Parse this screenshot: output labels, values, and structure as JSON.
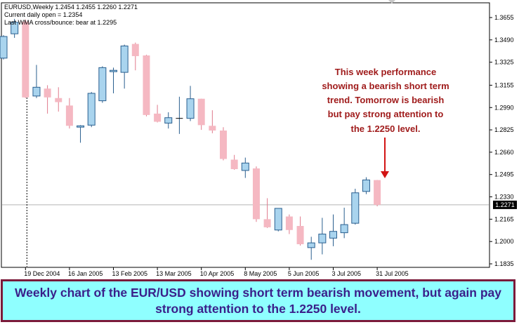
{
  "header": {
    "symbol_line": "EURUSD,Weekly  1.2454 1.2455 1.2260 1.2271",
    "daily_open_line": "Current daily open = 1.2354",
    "wma_line": "Last WMA cross/bounce: bear at 1.2295"
  },
  "annotation": {
    "lines": [
      "This week performance",
      "showing a bearish short term",
      "trend. Tomorrow is bearish",
      "but pay strong attention to",
      "the 1.2250 level."
    ]
  },
  "caption": {
    "text": "Weekly chart of the EUR/USD showing short term bearish movement, but again pay strong attention to the 1.2250 level."
  },
  "colors": {
    "bull": "#a9d4ee",
    "bear": "#f5b8c2",
    "bull_outline": "#2a5f8f",
    "bear_outline": "#e07a8c",
    "annotation_text": "#a01c1c",
    "arrow": "#d21414",
    "current_price_line": "#b4b4b4",
    "caption_bg": "#8fffff",
    "caption_text": "#3a1f8a",
    "caption_border": "#7b1a3a"
  },
  "chart_data": {
    "type": "candlestick",
    "y_ticks": [
      "1.3655",
      "1.3490",
      "1.3325",
      "1.3155",
      "1.2990",
      "1.2825",
      "1.2660",
      "1.2495",
      "1.2330",
      "1.2165",
      "1.2000",
      "1.1835"
    ],
    "ylim": [
      1.1835,
      1.3655
    ],
    "x_ticks": [
      {
        "label": "19 Dec 2004",
        "index": 2
      },
      {
        "label": "16 Jan 2005",
        "index": 6
      },
      {
        "label": "13 Feb 2005",
        "index": 10
      },
      {
        "label": "13 Mar 2005",
        "index": 14
      },
      {
        "label": "10 Apr 2005",
        "index": 18
      },
      {
        "label": "8 May 2005",
        "index": 22
      },
      {
        "label": "5 Jun 2005",
        "index": 26
      },
      {
        "label": "3 Jul 2005",
        "index": 30
      },
      {
        "label": "31 Jul 2005",
        "index": 34
      }
    ],
    "current_price": 1.2271,
    "current_price_label": "1.2271",
    "separator_index": 2,
    "candles": [
      {
        "o": 1.3355,
        "h": 1.3525,
        "l": 1.3345,
        "c": 1.3515
      },
      {
        "o": 1.3535,
        "h": 1.3645,
        "l": 1.3505,
        "c": 1.362
      },
      {
        "o": 1.3625,
        "h": 1.364,
        "l": 1.306,
        "c": 1.3065
      },
      {
        "o": 1.3075,
        "h": 1.3305,
        "l": 1.306,
        "c": 1.314
      },
      {
        "o": 1.313,
        "h": 1.3155,
        "l": 1.2945,
        "c": 1.3065
      },
      {
        "o": 1.306,
        "h": 1.314,
        "l": 1.296,
        "c": 1.303
      },
      {
        "o": 1.3005,
        "h": 1.306,
        "l": 1.2835,
        "c": 1.2855
      },
      {
        "o": 1.2845,
        "h": 1.286,
        "l": 1.273,
        "c": 1.2855
      },
      {
        "o": 1.286,
        "h": 1.3105,
        "l": 1.2845,
        "c": 1.3095
      },
      {
        "o": 1.304,
        "h": 1.3295,
        "l": 1.3025,
        "c": 1.3285
      },
      {
        "o": 1.3255,
        "h": 1.3285,
        "l": 1.3095,
        "c": 1.3265
      },
      {
        "o": 1.325,
        "h": 1.3455,
        "l": 1.313,
        "c": 1.3445
      },
      {
        "o": 1.346,
        "h": 1.347,
        "l": 1.3265,
        "c": 1.337
      },
      {
        "o": 1.3375,
        "h": 1.338,
        "l": 1.2925,
        "c": 1.2935
      },
      {
        "o": 1.2945,
        "h": 1.301,
        "l": 1.288,
        "c": 1.2885
      },
      {
        "o": 1.2875,
        "h": 1.2955,
        "l": 1.2835,
        "c": 1.2915
      },
      {
        "o": 1.291,
        "h": 1.307,
        "l": 1.2795,
        "c": 1.291
      },
      {
        "o": 1.291,
        "h": 1.315,
        "l": 1.289,
        "c": 1.3055
      },
      {
        "o": 1.3055,
        "h": 1.3055,
        "l": 1.2825,
        "c": 1.286
      },
      {
        "o": 1.2855,
        "h": 1.297,
        "l": 1.28,
        "c": 1.282
      },
      {
        "o": 1.282,
        "h": 1.2845,
        "l": 1.26,
        "c": 1.261
      },
      {
        "o": 1.2605,
        "h": 1.264,
        "l": 1.253,
        "c": 1.2535
      },
      {
        "o": 1.2525,
        "h": 1.262,
        "l": 1.247,
        "c": 1.258
      },
      {
        "o": 1.254,
        "h": 1.2555,
        "l": 1.2145,
        "c": 1.2165
      },
      {
        "o": 1.2165,
        "h": 1.232,
        "l": 1.21,
        "c": 1.2105
      },
      {
        "o": 1.2085,
        "h": 1.2245,
        "l": 1.2075,
        "c": 1.2245
      },
      {
        "o": 1.2185,
        "h": 1.22,
        "l": 1.2055,
        "c": 1.2085
      },
      {
        "o": 1.2115,
        "h": 1.2185,
        "l": 1.197,
        "c": 1.198
      },
      {
        "o": 1.1955,
        "h": 1.2035,
        "l": 1.1865,
        "c": 1.199
      },
      {
        "o": 1.199,
        "h": 1.2175,
        "l": 1.1905,
        "c": 1.2055
      },
      {
        "o": 1.2025,
        "h": 1.22,
        "l": 1.1965,
        "c": 1.2075
      },
      {
        "o": 1.2065,
        "h": 1.225,
        "l": 1.2025,
        "c": 1.2125
      },
      {
        "o": 1.2135,
        "h": 1.239,
        "l": 1.2125,
        "c": 1.236
      },
      {
        "o": 1.237,
        "h": 1.2475,
        "l": 1.235,
        "c": 1.2455
      },
      {
        "o": 1.2454,
        "h": 1.2455,
        "l": 1.226,
        "c": 1.2271
      }
    ]
  }
}
